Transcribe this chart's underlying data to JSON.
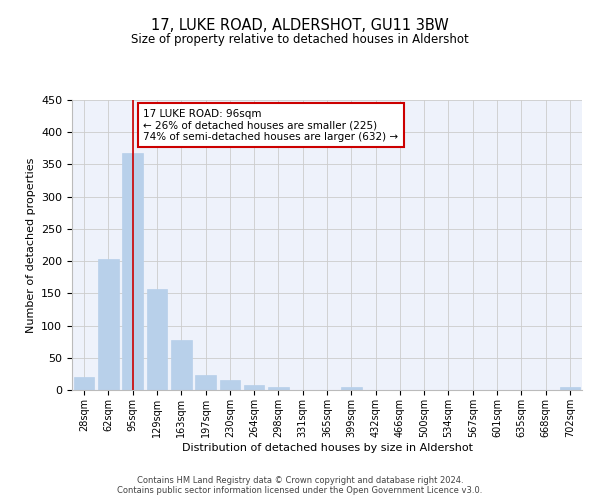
{
  "title": "17, LUKE ROAD, ALDERSHOT, GU11 3BW",
  "subtitle": "Size of property relative to detached houses in Aldershot",
  "xlabel": "Distribution of detached houses by size in Aldershot",
  "ylabel": "Number of detached properties",
  "footer_line1": "Contains HM Land Registry data © Crown copyright and database right 2024.",
  "footer_line2": "Contains public sector information licensed under the Open Government Licence v3.0.",
  "bin_labels": [
    "28sqm",
    "62sqm",
    "95sqm",
    "129sqm",
    "163sqm",
    "197sqm",
    "230sqm",
    "264sqm",
    "298sqm",
    "331sqm",
    "365sqm",
    "399sqm",
    "432sqm",
    "466sqm",
    "500sqm",
    "534sqm",
    "567sqm",
    "601sqm",
    "635sqm",
    "668sqm",
    "702sqm"
  ],
  "bar_values": [
    20,
    203,
    368,
    156,
    78,
    23,
    15,
    8,
    4,
    0,
    0,
    4,
    0,
    0,
    0,
    0,
    0,
    0,
    0,
    0,
    4
  ],
  "bar_color": "#b8d0ea",
  "bar_edge_color": "#b8d0ea",
  "grid_color": "#cccccc",
  "vline_x_index": 2,
  "vline_color": "#cc0000",
  "annotation_text_line1": "17 LUKE ROAD: 96sqm",
  "annotation_text_line2": "← 26% of detached houses are smaller (225)",
  "annotation_text_line3": "74% of semi-detached houses are larger (632) →",
  "annotation_box_color": "#ffffff",
  "annotation_border_color": "#cc0000",
  "ylim": [
    0,
    450
  ],
  "yticks": [
    0,
    50,
    100,
    150,
    200,
    250,
    300,
    350,
    400,
    450
  ],
  "bg_color": "#ffffff",
  "plot_bg_color": "#eef2fb"
}
